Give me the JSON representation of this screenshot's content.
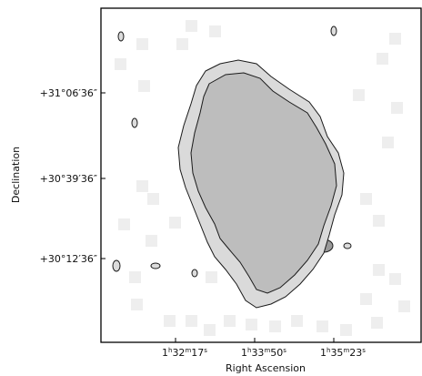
{
  "chart_data": {
    "type": "map",
    "xlabel": "Right Ascension",
    "ylabel": "Declination",
    "x_tick_labels": [
      {
        "h": "1",
        "m": "32",
        "s": "17"
      },
      {
        "h": "1",
        "m": "33",
        "s": "50"
      },
      {
        "h": "1",
        "m": "35",
        "s": "23"
      }
    ],
    "y_tick_labels": [
      "+31°06′36″",
      "+30°39′36″",
      "+30°12′36″"
    ],
    "colors": {
      "frame": "#000000",
      "contour": "#1a1a1a",
      "background_pixel": "#eeeeee",
      "light": "#dadada",
      "mid": "#bdbdbd",
      "dark": "#9a9a9a",
      "peak": "#555555",
      "core": "#111111"
    }
  }
}
